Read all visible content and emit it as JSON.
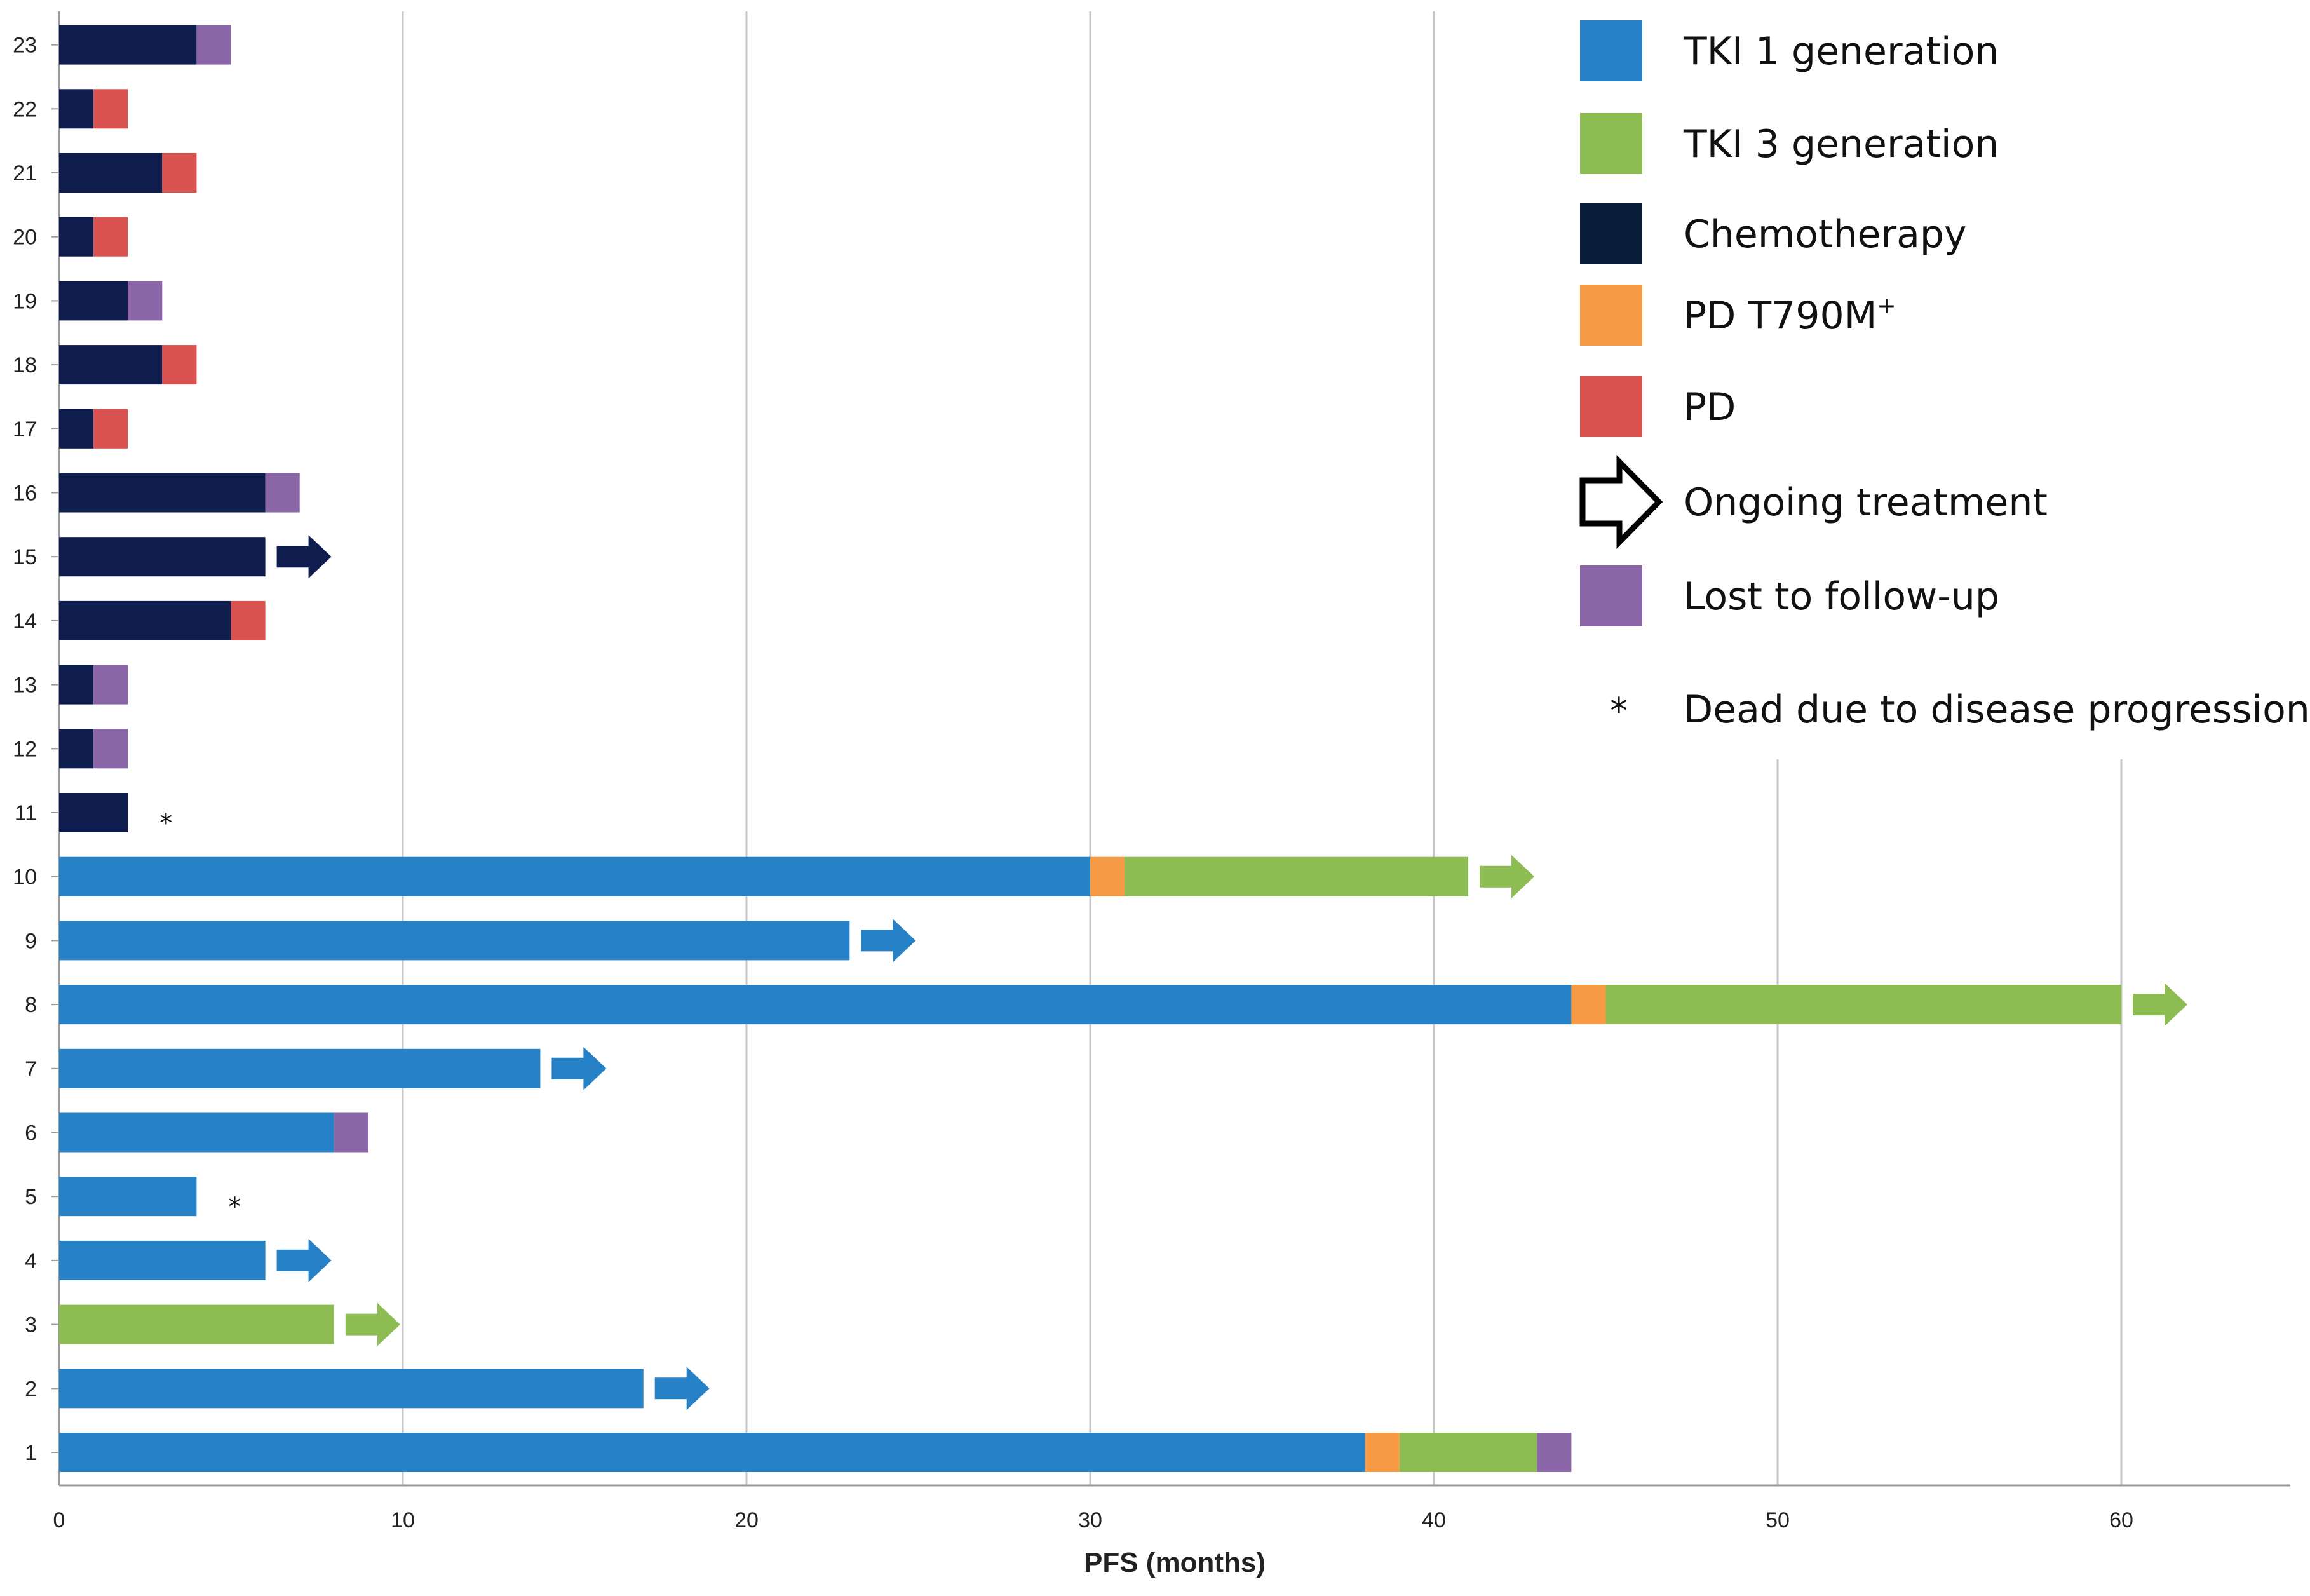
{
  "chart_data": {
    "type": "bar",
    "orientation": "horizontal",
    "stacked": true,
    "xlabel": "PFS (months)",
    "xlim": [
      0,
      65
    ],
    "xticks": [
      0,
      10,
      20,
      30,
      40,
      50,
      60
    ],
    "grid": "vertical",
    "legend_position": "top-right",
    "categories": [
      "1",
      "2",
      "3",
      "4",
      "5",
      "6",
      "7",
      "8",
      "9",
      "10",
      "11",
      "12",
      "13",
      "14",
      "15",
      "16",
      "17",
      "18",
      "19",
      "20",
      "21",
      "22",
      "23"
    ],
    "colors": {
      "TKI 1 generation": "#2681c6",
      "TKI 3 generation": "#8cbc52",
      "Chemotherapy": "#0e1c4e",
      "PD T790M+": "#f79a45",
      "PD": "#d9524f",
      "Lost to follow-up": "#8a66a8"
    },
    "legend": [
      {
        "label": "TKI 1 generation",
        "marker": "box",
        "color": "#2681c6"
      },
      {
        "label": "TKI 3 generation",
        "marker": "box",
        "color": "#8cbc52"
      },
      {
        "label": "Chemotherapy",
        "marker": "box",
        "color": "#0a1d38"
      },
      {
        "label": "PD T790M",
        "superscript": "+",
        "marker": "box",
        "color": "#f79a45"
      },
      {
        "label": "PD",
        "marker": "box",
        "color": "#d9524f"
      },
      {
        "label": "Ongoing treatment",
        "marker": "arrow",
        "color": "#000000"
      },
      {
        "label": "Lost to follow-up",
        "marker": "box",
        "color": "#8a66a8"
      },
      {
        "label": "Dead due to disease progression",
        "marker": "star",
        "symbol": "*"
      }
    ],
    "patients": [
      {
        "id": "1",
        "segments": [
          [
            "TKI 1 generation",
            0,
            38
          ],
          [
            "PD T790M+",
            38,
            39
          ],
          [
            "TKI 3 generation",
            39,
            43
          ],
          [
            "Lost to follow-up",
            43,
            44
          ]
        ],
        "ongoing": false,
        "dead": false
      },
      {
        "id": "2",
        "segments": [
          [
            "TKI 1 generation",
            0,
            17
          ]
        ],
        "ongoing": true,
        "dead": false
      },
      {
        "id": "3",
        "segments": [
          [
            "TKI 3 generation",
            0,
            8
          ]
        ],
        "ongoing": true,
        "dead": false
      },
      {
        "id": "4",
        "segments": [
          [
            "TKI 1 generation",
            0,
            6
          ]
        ],
        "ongoing": true,
        "dead": false
      },
      {
        "id": "5",
        "segments": [
          [
            "TKI 1 generation",
            0,
            4
          ]
        ],
        "ongoing": false,
        "dead": true
      },
      {
        "id": "6",
        "segments": [
          [
            "TKI 1 generation",
            0,
            8
          ],
          [
            "Lost to follow-up",
            8,
            9
          ]
        ],
        "ongoing": false,
        "dead": false
      },
      {
        "id": "7",
        "segments": [
          [
            "TKI 1 generation",
            0,
            14
          ]
        ],
        "ongoing": true,
        "dead": false
      },
      {
        "id": "8",
        "segments": [
          [
            "TKI 1 generation",
            0,
            44
          ],
          [
            "PD T790M+",
            44,
            45
          ],
          [
            "TKI 3 generation",
            45,
            60
          ]
        ],
        "ongoing": true,
        "dead": false
      },
      {
        "id": "9",
        "segments": [
          [
            "TKI 1 generation",
            0,
            23
          ]
        ],
        "ongoing": true,
        "dead": false
      },
      {
        "id": "10",
        "segments": [
          [
            "TKI 1 generation",
            0,
            30
          ],
          [
            "PD T790M+",
            30,
            31
          ],
          [
            "TKI 3 generation",
            31,
            41
          ]
        ],
        "ongoing": true,
        "dead": false
      },
      {
        "id": "11",
        "segments": [
          [
            "Chemotherapy",
            0,
            2
          ]
        ],
        "ongoing": false,
        "dead": true
      },
      {
        "id": "12",
        "segments": [
          [
            "Chemotherapy",
            0,
            1
          ],
          [
            "Lost to follow-up",
            1,
            2
          ]
        ],
        "ongoing": false,
        "dead": false
      },
      {
        "id": "13",
        "segments": [
          [
            "Chemotherapy",
            0,
            1
          ],
          [
            "Lost to follow-up",
            1,
            2
          ]
        ],
        "ongoing": false,
        "dead": false
      },
      {
        "id": "14",
        "segments": [
          [
            "Chemotherapy",
            0,
            5
          ],
          [
            "PD",
            5,
            6
          ]
        ],
        "ongoing": false,
        "dead": false
      },
      {
        "id": "15",
        "segments": [
          [
            "Chemotherapy",
            0,
            6
          ]
        ],
        "ongoing": true,
        "dead": false
      },
      {
        "id": "16",
        "segments": [
          [
            "Chemotherapy",
            0,
            6
          ],
          [
            "Lost to follow-up",
            6,
            7
          ]
        ],
        "ongoing": false,
        "dead": false
      },
      {
        "id": "17",
        "segments": [
          [
            "Chemotherapy",
            0,
            1
          ],
          [
            "PD",
            1,
            2
          ]
        ],
        "ongoing": false,
        "dead": false
      },
      {
        "id": "18",
        "segments": [
          [
            "Chemotherapy",
            0,
            3
          ],
          [
            "PD",
            3,
            4
          ]
        ],
        "ongoing": false,
        "dead": false
      },
      {
        "id": "19",
        "segments": [
          [
            "Chemotherapy",
            0,
            2
          ],
          [
            "Lost to follow-up",
            2,
            3
          ]
        ],
        "ongoing": false,
        "dead": false
      },
      {
        "id": "20",
        "segments": [
          [
            "Chemotherapy",
            0,
            1
          ],
          [
            "PD",
            1,
            2
          ]
        ],
        "ongoing": false,
        "dead": false
      },
      {
        "id": "21",
        "segments": [
          [
            "Chemotherapy",
            0,
            3
          ],
          [
            "PD",
            3,
            4
          ]
        ],
        "ongoing": false,
        "dead": false
      },
      {
        "id": "22",
        "segments": [
          [
            "Chemotherapy",
            0,
            1
          ],
          [
            "PD",
            1,
            2
          ]
        ],
        "ongoing": false,
        "dead": false
      },
      {
        "id": "23",
        "segments": [
          [
            "Chemotherapy",
            0,
            4
          ],
          [
            "Lost to follow-up",
            4,
            5
          ]
        ],
        "ongoing": false,
        "dead": false
      }
    ]
  }
}
